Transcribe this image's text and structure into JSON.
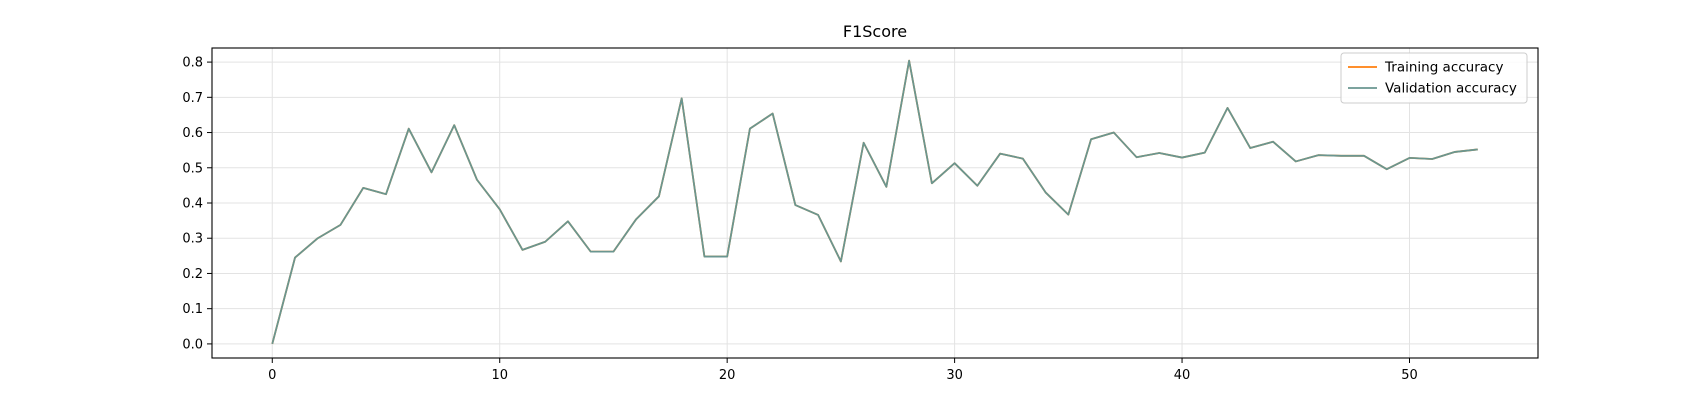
{
  "chart_data": {
    "type": "line",
    "title": "F1Score",
    "xlabel": "",
    "ylabel": "",
    "xlim": [
      -2.65,
      55.65
    ],
    "ylim": [
      -0.04,
      0.84
    ],
    "xticks": [
      0,
      10,
      20,
      30,
      40,
      50
    ],
    "yticks": [
      0.0,
      0.1,
      0.2,
      0.3,
      0.4,
      0.5,
      0.6,
      0.7,
      0.8
    ],
    "tick_labels_x": [
      "0",
      "10",
      "20",
      "30",
      "40",
      "50"
    ],
    "tick_labels_y": [
      "0.0",
      "0.1",
      "0.2",
      "0.3",
      "0.4",
      "0.5",
      "0.6",
      "0.7",
      "0.8"
    ],
    "grid": true,
    "legend_position": "top-right",
    "x": [
      0,
      1,
      2,
      3,
      4,
      5,
      6,
      7,
      8,
      9,
      10,
      11,
      12,
      13,
      14,
      15,
      16,
      17,
      18,
      19,
      20,
      21,
      22,
      23,
      24,
      25,
      26,
      27,
      28,
      29,
      30,
      31,
      32,
      33,
      34,
      35,
      36,
      37,
      38,
      39,
      40,
      41,
      42,
      43,
      44,
      45,
      46,
      47,
      48,
      49,
      50,
      51,
      52,
      53
    ],
    "series": [
      {
        "name": "Training accuracy",
        "color": "#ff7f0e",
        "values": [
          0.0,
          0.245,
          0.3,
          0.338,
          0.443,
          0.425,
          0.611,
          0.487,
          0.621,
          0.466,
          0.382,
          0.267,
          0.29,
          0.348,
          0.262,
          0.262,
          0.354,
          0.419,
          0.697,
          0.248,
          0.248,
          0.611,
          0.654,
          0.394,
          0.366,
          0.234,
          0.571,
          0.446,
          0.804,
          0.456,
          0.513,
          0.449,
          0.54,
          0.526,
          0.43,
          0.367,
          0.581,
          0.6,
          0.53,
          0.542,
          0.529,
          0.543,
          0.67,
          0.556,
          0.574,
          0.518,
          0.536,
          0.534,
          0.534,
          0.496,
          0.528,
          0.525,
          0.545,
          0.552
        ]
      },
      {
        "name": "Validation accuracy",
        "color": "#6a9690",
        "values": [
          0.0,
          0.245,
          0.3,
          0.338,
          0.443,
          0.425,
          0.611,
          0.487,
          0.621,
          0.466,
          0.382,
          0.267,
          0.29,
          0.348,
          0.262,
          0.262,
          0.354,
          0.419,
          0.697,
          0.248,
          0.248,
          0.611,
          0.654,
          0.394,
          0.366,
          0.234,
          0.571,
          0.446,
          0.804,
          0.456,
          0.513,
          0.449,
          0.54,
          0.526,
          0.43,
          0.367,
          0.581,
          0.6,
          0.53,
          0.542,
          0.529,
          0.543,
          0.67,
          0.556,
          0.574,
          0.518,
          0.536,
          0.534,
          0.534,
          0.496,
          0.528,
          0.525,
          0.545,
          0.552
        ]
      }
    ]
  }
}
